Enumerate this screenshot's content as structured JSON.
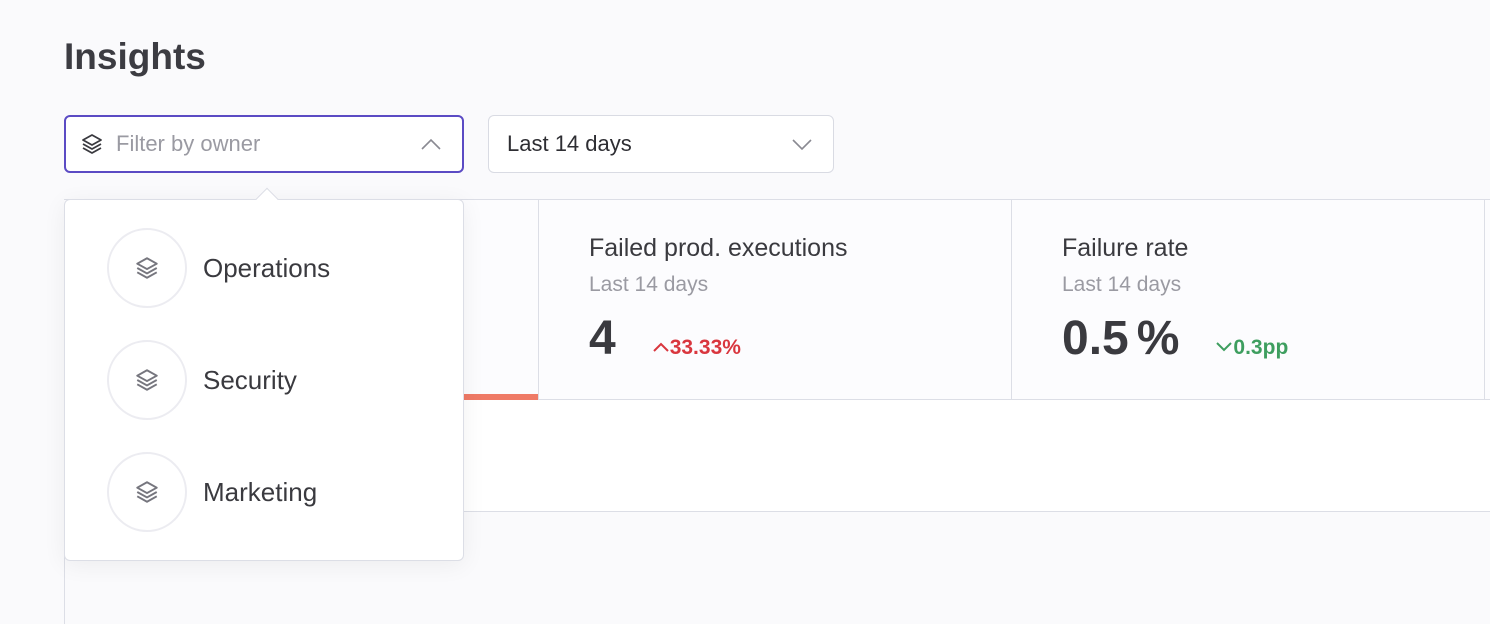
{
  "page": {
    "title": "Insights"
  },
  "filters": {
    "owner_placeholder": "Filter by owner",
    "range_value": "Last 14 days"
  },
  "dropdown": {
    "items": [
      {
        "label": "Operations",
        "icon": "layers-icon"
      },
      {
        "label": "Security",
        "icon": "layers-icon"
      },
      {
        "label": "Marketing",
        "icon": "layers-icon"
      }
    ]
  },
  "cards": [
    {
      "title": "Failed prod. executions",
      "subtitle": "Last 14 days",
      "value": "4",
      "delta": "33.33%",
      "delta_direction": "up",
      "delta_color": "#d9363e"
    },
    {
      "title": "Failure rate",
      "subtitle": "Last 14 days",
      "value": "0.5",
      "unit": "%",
      "delta": "0.3pp",
      "delta_direction": "down",
      "delta_color": "#3e9e5f"
    }
  ],
  "colors": {
    "accent": "#5b4bc4",
    "active_tab": "#ef7a66"
  }
}
